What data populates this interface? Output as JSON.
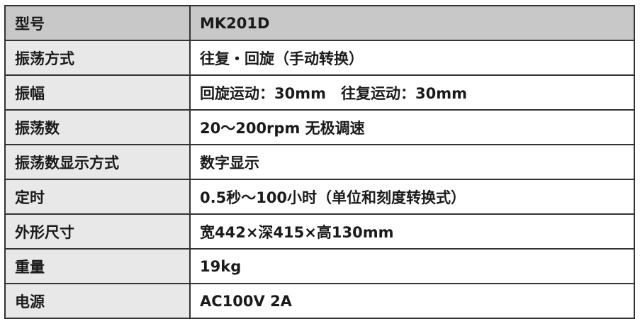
{
  "colors": {
    "header_bg": "#c8c8c8",
    "label_bg": "#e8e8e8",
    "border": "#333333"
  },
  "rows": [
    {
      "label": "型号",
      "value": "MK201D"
    },
    {
      "label": "振荡方式",
      "value": "往复・回旋（手动转换）"
    },
    {
      "label": "振幅",
      "value": "回旋运动：30mm　往复运动：30mm"
    },
    {
      "label": "振荡数",
      "value": "20～200rpm 无极调速"
    },
    {
      "label": "振荡数显示方式",
      "value": "数字显示"
    },
    {
      "label": "定时",
      "value": "0.5秒～100小时（单位和刻度转换式）"
    },
    {
      "label": "外形尺寸",
      "value": "宽442×深415×高130mm"
    },
    {
      "label": "重量",
      "value": "19kg"
    },
    {
      "label": "电源",
      "value": "AC100V 2A"
    }
  ]
}
